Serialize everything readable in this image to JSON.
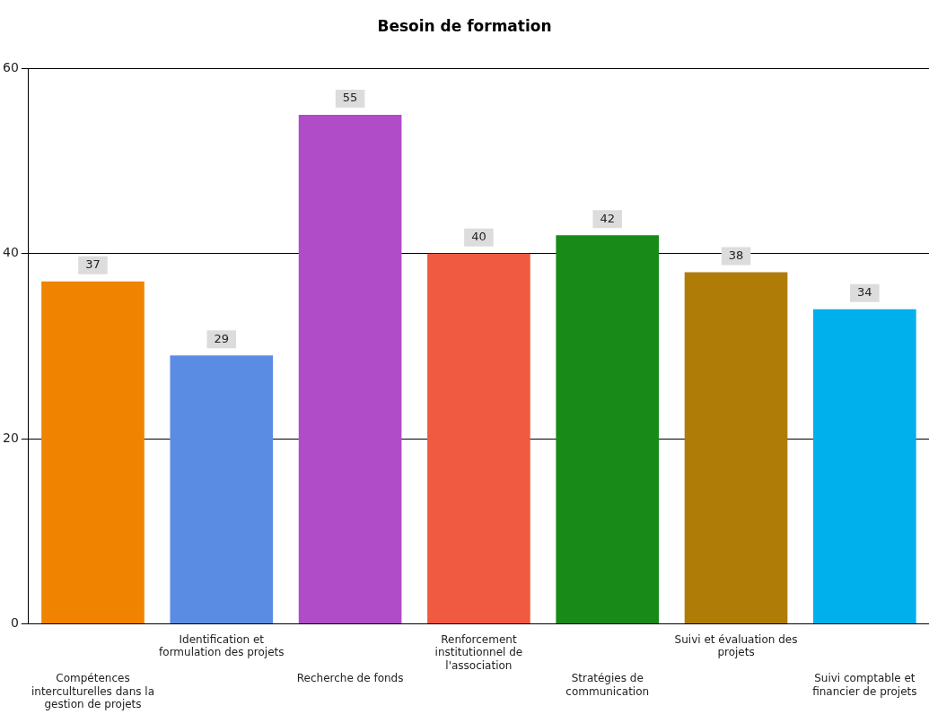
{
  "chart_data": {
    "type": "bar",
    "title": "Besoin de formation",
    "categories": [
      "Compétences interculturelles dans la gestion de projets",
      "Identification et formulation des projets",
      "Recherche de fonds",
      "Renforcement institutionnel de l'association",
      "Stratégies de communication",
      "Suivi et évaluation des projets",
      "Suivi comptable et financier de projets"
    ],
    "values": [
      37,
      29,
      55,
      40,
      42,
      38,
      34
    ],
    "colors": [
      "#f08400",
      "#5a8ce4",
      "#b04cc8",
      "#f05a40",
      "#188a18",
      "#b07c08",
      "#00b0ec"
    ],
    "ylim": [
      0,
      60
    ],
    "yticks": [
      0,
      20,
      40,
      60
    ],
    "grid": "y",
    "data_labels": true,
    "legend": false
  }
}
